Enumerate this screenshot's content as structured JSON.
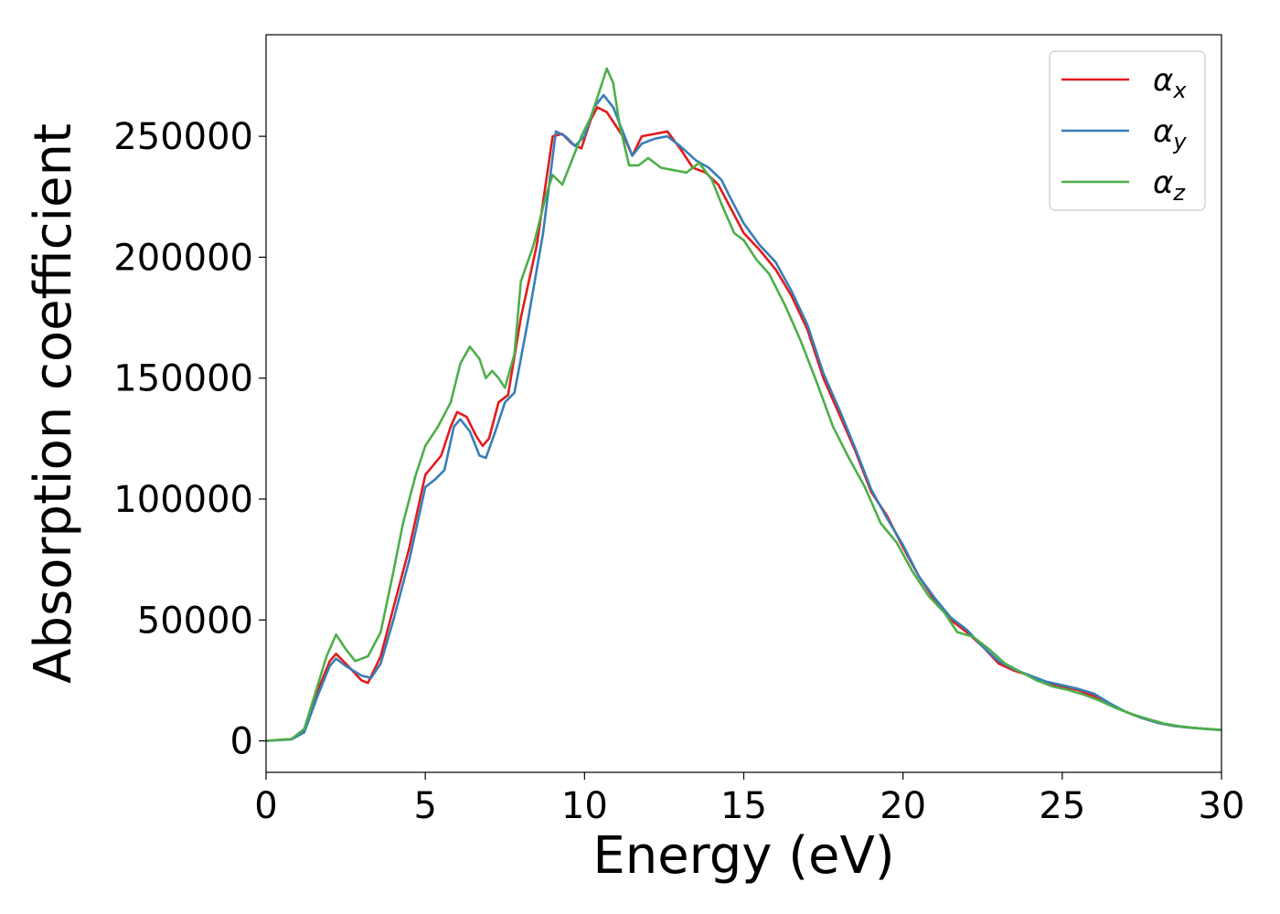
{
  "chart_data": {
    "type": "line",
    "title": "",
    "xlabel": "Energy (eV)",
    "ylabel": "Absorption coefficient",
    "xlim": [
      0,
      30
    ],
    "ylim": [
      -13000,
      292000
    ],
    "xticks": [
      0,
      5,
      10,
      15,
      20,
      25,
      30
    ],
    "xtick_labels": [
      "0",
      "5",
      "10",
      "15",
      "20",
      "25",
      "30"
    ],
    "yticks": [
      0,
      50000,
      100000,
      150000,
      200000,
      250000
    ],
    "ytick_labels": [
      "0",
      "50000",
      "100000",
      "150000",
      "200000",
      "250000"
    ],
    "grid": false,
    "legend_position": "top-right",
    "series": [
      {
        "name": "α",
        "subscript": "x",
        "color": "#e41a1c",
        "points": [
          [
            0,
            0
          ],
          [
            0.8,
            800
          ],
          [
            1.2,
            4000
          ],
          [
            1.6,
            20000
          ],
          [
            2.0,
            33000
          ],
          [
            2.2,
            36000
          ],
          [
            2.5,
            32000
          ],
          [
            3.0,
            25000
          ],
          [
            3.2,
            24000
          ],
          [
            3.6,
            35000
          ],
          [
            4.0,
            55000
          ],
          [
            4.5,
            80000
          ],
          [
            5.0,
            110000
          ],
          [
            5.5,
            118000
          ],
          [
            5.8,
            130000
          ],
          [
            6.0,
            136000
          ],
          [
            6.3,
            134000
          ],
          [
            6.6,
            126000
          ],
          [
            6.8,
            122000
          ],
          [
            7.0,
            125000
          ],
          [
            7.3,
            140000
          ],
          [
            7.6,
            143000
          ],
          [
            8.0,
            175000
          ],
          [
            8.5,
            205000
          ],
          [
            9.0,
            250000
          ],
          [
            9.3,
            251000
          ],
          [
            9.6,
            247000
          ],
          [
            9.9,
            245000
          ],
          [
            10.2,
            257000
          ],
          [
            10.4,
            262000
          ],
          [
            10.7,
            260000
          ],
          [
            11.0,
            254000
          ],
          [
            11.3,
            248000
          ],
          [
            11.5,
            242000
          ],
          [
            11.8,
            250000
          ],
          [
            12.2,
            251000
          ],
          [
            12.6,
            252000
          ],
          [
            13.0,
            245000
          ],
          [
            13.4,
            237000
          ],
          [
            13.8,
            235000
          ],
          [
            14.2,
            230000
          ],
          [
            14.6,
            220000
          ],
          [
            15.0,
            210000
          ],
          [
            15.5,
            203000
          ],
          [
            16.0,
            195000
          ],
          [
            16.5,
            184000
          ],
          [
            17.0,
            170000
          ],
          [
            17.5,
            150000
          ],
          [
            18.0,
            135000
          ],
          [
            18.5,
            120000
          ],
          [
            19.0,
            103000
          ],
          [
            19.5,
            93000
          ],
          [
            20.0,
            80000
          ],
          [
            20.5,
            68000
          ],
          [
            21.0,
            58000
          ],
          [
            21.5,
            50000
          ],
          [
            22.0,
            45000
          ],
          [
            22.5,
            39000
          ],
          [
            23.0,
            32000
          ],
          [
            23.5,
            29000
          ],
          [
            24.0,
            27000
          ],
          [
            24.5,
            24000
          ],
          [
            25.0,
            22500
          ],
          [
            25.5,
            21000
          ],
          [
            26.0,
            18500
          ],
          [
            26.5,
            15000
          ],
          [
            27.0,
            12000
          ],
          [
            27.5,
            9500
          ],
          [
            28.0,
            7500
          ],
          [
            28.5,
            6200
          ],
          [
            29.0,
            5500
          ],
          [
            29.5,
            5000
          ],
          [
            30.0,
            4500
          ]
        ]
      },
      {
        "name": "α",
        "subscript": "y",
        "color": "#377eb8",
        "points": [
          [
            0,
            0
          ],
          [
            0.8,
            600
          ],
          [
            1.2,
            3500
          ],
          [
            1.6,
            18000
          ],
          [
            2.0,
            31000
          ],
          [
            2.2,
            34000
          ],
          [
            2.5,
            31000
          ],
          [
            3.0,
            27000
          ],
          [
            3.3,
            26000
          ],
          [
            3.6,
            32000
          ],
          [
            4.0,
            50000
          ],
          [
            4.5,
            75000
          ],
          [
            5.0,
            105000
          ],
          [
            5.3,
            108000
          ],
          [
            5.6,
            112000
          ],
          [
            5.9,
            130000
          ],
          [
            6.1,
            133000
          ],
          [
            6.4,
            128000
          ],
          [
            6.7,
            118000
          ],
          [
            6.9,
            117000
          ],
          [
            7.2,
            128000
          ],
          [
            7.5,
            140000
          ],
          [
            7.8,
            144000
          ],
          [
            8.2,
            172000
          ],
          [
            8.7,
            210000
          ],
          [
            9.1,
            252000
          ],
          [
            9.4,
            250000
          ],
          [
            9.7,
            246000
          ],
          [
            10.0,
            250000
          ],
          [
            10.3,
            262000
          ],
          [
            10.6,
            267000
          ],
          [
            10.9,
            262000
          ],
          [
            11.2,
            252000
          ],
          [
            11.5,
            242000
          ],
          [
            11.8,
            247000
          ],
          [
            12.2,
            249000
          ],
          [
            12.6,
            250000
          ],
          [
            13.0,
            246000
          ],
          [
            13.5,
            240000
          ],
          [
            13.9,
            237000
          ],
          [
            14.3,
            232000
          ],
          [
            14.6,
            224000
          ],
          [
            15.0,
            214000
          ],
          [
            15.5,
            205000
          ],
          [
            16.0,
            198000
          ],
          [
            16.5,
            186000
          ],
          [
            17.0,
            172000
          ],
          [
            17.5,
            152000
          ],
          [
            18.0,
            137000
          ],
          [
            18.5,
            121000
          ],
          [
            19.0,
            104000
          ],
          [
            19.5,
            92000
          ],
          [
            20.0,
            81000
          ],
          [
            20.5,
            68000
          ],
          [
            21.0,
            59000
          ],
          [
            21.5,
            51000
          ],
          [
            22.0,
            46000
          ],
          [
            22.5,
            39000
          ],
          [
            23.0,
            33000
          ],
          [
            23.5,
            29500
          ],
          [
            24.0,
            27000
          ],
          [
            24.5,
            24500
          ],
          [
            25.0,
            23000
          ],
          [
            25.5,
            21500
          ],
          [
            26.0,
            19500
          ],
          [
            26.5,
            15500
          ],
          [
            27.0,
            12000
          ],
          [
            27.5,
            9500
          ],
          [
            28.0,
            7500
          ],
          [
            28.5,
            6200
          ],
          [
            29.0,
            5500
          ],
          [
            29.5,
            5000
          ],
          [
            30.0,
            4500
          ]
        ]
      },
      {
        "name": "α",
        "subscript": "z",
        "color": "#4daf4a",
        "points": [
          [
            0,
            0
          ],
          [
            0.8,
            800
          ],
          [
            1.2,
            5000
          ],
          [
            1.6,
            22000
          ],
          [
            1.9,
            35000
          ],
          [
            2.2,
            44000
          ],
          [
            2.5,
            38000
          ],
          [
            2.8,
            33000
          ],
          [
            3.2,
            35000
          ],
          [
            3.6,
            45000
          ],
          [
            4.0,
            70000
          ],
          [
            4.3,
            90000
          ],
          [
            4.7,
            110000
          ],
          [
            5.0,
            122000
          ],
          [
            5.4,
            130000
          ],
          [
            5.8,
            140000
          ],
          [
            6.1,
            156000
          ],
          [
            6.4,
            163000
          ],
          [
            6.7,
            158000
          ],
          [
            6.9,
            150000
          ],
          [
            7.1,
            153000
          ],
          [
            7.3,
            150000
          ],
          [
            7.5,
            146000
          ],
          [
            7.8,
            160000
          ],
          [
            8.0,
            190000
          ],
          [
            8.4,
            205000
          ],
          [
            8.8,
            226000
          ],
          [
            9.0,
            234000
          ],
          [
            9.3,
            230000
          ],
          [
            9.6,
            240000
          ],
          [
            9.9,
            250000
          ],
          [
            10.2,
            258000
          ],
          [
            10.5,
            270000
          ],
          [
            10.7,
            278000
          ],
          [
            10.9,
            272000
          ],
          [
            11.1,
            255000
          ],
          [
            11.4,
            238000
          ],
          [
            11.7,
            238000
          ],
          [
            12.0,
            241000
          ],
          [
            12.4,
            237000
          ],
          [
            12.8,
            236000
          ],
          [
            13.2,
            235000
          ],
          [
            13.6,
            239000
          ],
          [
            14.0,
            232000
          ],
          [
            14.3,
            222000
          ],
          [
            14.7,
            210000
          ],
          [
            15.0,
            207000
          ],
          [
            15.4,
            199000
          ],
          [
            15.8,
            193000
          ],
          [
            16.3,
            180000
          ],
          [
            16.8,
            165000
          ],
          [
            17.3,
            148000
          ],
          [
            17.8,
            130000
          ],
          [
            18.3,
            117000
          ],
          [
            18.8,
            105000
          ],
          [
            19.3,
            90000
          ],
          [
            19.8,
            82000
          ],
          [
            20.3,
            70000
          ],
          [
            20.8,
            60000
          ],
          [
            21.3,
            53000
          ],
          [
            21.7,
            45000
          ],
          [
            22.2,
            43000
          ],
          [
            22.7,
            38000
          ],
          [
            23.2,
            32000
          ],
          [
            23.7,
            28500
          ],
          [
            24.2,
            25000
          ],
          [
            24.7,
            22500
          ],
          [
            25.2,
            21000
          ],
          [
            25.7,
            19000
          ],
          [
            26.2,
            16500
          ],
          [
            26.7,
            13500
          ],
          [
            27.2,
            11000
          ],
          [
            27.7,
            9000
          ],
          [
            28.2,
            7200
          ],
          [
            28.7,
            6000
          ],
          [
            29.2,
            5300
          ],
          [
            29.7,
            4800
          ],
          [
            30.0,
            4500
          ]
        ]
      }
    ]
  }
}
